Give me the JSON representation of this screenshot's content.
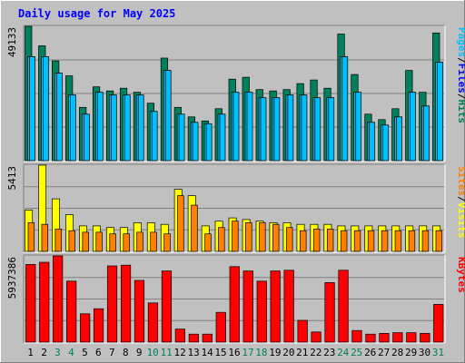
{
  "chart_data": {
    "type": "bar",
    "title": "Daily usage for May 2025",
    "colors": {
      "background": "#c0c0c0",
      "frame_light": "#ffffff",
      "frame_dark": "#808080",
      "title": "#0000ff",
      "hits": "#00805c",
      "files": "#00c0ff",
      "pages": "#00c0ff",
      "visits": "#ffff00",
      "sites": "#ff8000",
      "kbytes": "#ff0000",
      "weekend_day": "#00805c",
      "weekday": "#000000",
      "separator_legend": "#000000"
    },
    "categories": [
      "1",
      "2",
      "3",
      "4",
      "5",
      "6",
      "7",
      "8",
      "9",
      "10",
      "11",
      "12",
      "13",
      "14",
      "15",
      "16",
      "17",
      "18",
      "19",
      "20",
      "21",
      "22",
      "23",
      "24",
      "25",
      "26",
      "27",
      "28",
      "29",
      "30",
      "31"
    ],
    "weekend_days": [
      "3",
      "4",
      "10",
      "11",
      "17",
      "18",
      "24",
      "25",
      "31"
    ],
    "panels": [
      {
        "id": "hits-files-pages",
        "axis_max_label": "49133",
        "ylim": [
          0,
          49133
        ],
        "legend": [
          {
            "text": "Hits",
            "color": "#00805c"
          },
          {
            "text": "/",
            "color": "#000000"
          },
          {
            "text": "Files",
            "color": "#0000ff"
          },
          {
            "text": "/",
            "color": "#000000"
          },
          {
            "text": "Pages",
            "color": "#00c0ff"
          }
        ],
        "series": [
          {
            "name": "Hits",
            "color": "#00805c",
            "values": [
              49133,
              42000,
              36500,
              31000,
              19500,
              27000,
              25500,
              26500,
              25000,
              21000,
              37500,
              19500,
              16000,
              14500,
              19000,
              29800,
              30500,
              26000,
              25500,
              26000,
              28200,
              29500,
              26500,
              46300,
              31500,
              17000,
              15000,
              19000,
              33000,
              25000,
              46700
            ]
          },
          {
            "name": "Files",
            "color": "#00c0ff",
            "values": [
              38000,
              38000,
              32000,
              24000,
              17000,
              25000,
              24000,
              24000,
              24000,
              18000,
              33000,
              17000,
              14000,
              13500,
              17000,
              25000,
              25000,
              23000,
              23000,
              24000,
              24000,
              23000,
              23000,
              38000,
              25000,
              14000,
              13000,
              16000,
              25000,
              20000,
              36000
            ]
          },
          {
            "name": "Pages",
            "color": "#00c0ff",
            "values": [
              38000,
              38000,
              32000,
              24000,
              17000,
              25000,
              24000,
              24000,
              24000,
              18000,
              33000,
              17000,
              14000,
              13500,
              17000,
              25000,
              25000,
              23000,
              23000,
              24000,
              24000,
              23000,
              23000,
              38000,
              25000,
              14000,
              13000,
              16000,
              25000,
              20000,
              36000
            ]
          }
        ]
      },
      {
        "id": "visits-sites",
        "axis_max_label": "5413",
        "ylim": [
          0,
          5413
        ],
        "legend": [
          {
            "text": "Visits",
            "color": "#ffff00"
          },
          {
            "text": "/",
            "color": "#000000"
          },
          {
            "text": "Sites",
            "color": "#ff8000"
          }
        ],
        "series": [
          {
            "name": "Visits",
            "color": "#ffff00",
            "values": [
              2600,
              5413,
              3300,
              2300,
              1600,
              1600,
              1500,
              1500,
              1800,
              1800,
              1700,
              3900,
              3500,
              1600,
              1900,
              2100,
              2000,
              1900,
              1800,
              1800,
              1700,
              1700,
              1700,
              1600,
              1600,
              1600,
              1600,
              1600,
              1600,
              1600,
              1600
            ]
          },
          {
            "name": "Sites",
            "color": "#ff8000",
            "values": [
              1800,
              1700,
              1400,
              1300,
              1200,
              1200,
              1100,
              1100,
              1200,
              1200,
              1100,
              3500,
              2900,
              1100,
              1500,
              1900,
              1800,
              1800,
              1700,
              1500,
              1300,
              1400,
              1400,
              1300,
              1300,
              1300,
              1300,
              1300,
              1300,
              1300,
              1300
            ]
          }
        ]
      },
      {
        "id": "kbytes",
        "axis_max_label": "5937386",
        "ylim": [
          0,
          5937386
        ],
        "legend": [
          {
            "text": "KBytes",
            "color": "#ff0000"
          }
        ],
        "series": [
          {
            "name": "KBytes",
            "color": "#ff0000",
            "values": [
              5350000,
              5500000,
              5937386,
              4200000,
              1950000,
              2300000,
              5250000,
              5300000,
              4250000,
              2700000,
              4900000,
              900000,
              550000,
              550000,
              2050000,
              5200000,
              4900000,
              4200000,
              4900000,
              4950000,
              1500000,
              700000,
              4100000,
              4950000,
              800000,
              550000,
              600000,
              650000,
              650000,
              600000,
              2600000
            ]
          }
        ]
      }
    ]
  }
}
